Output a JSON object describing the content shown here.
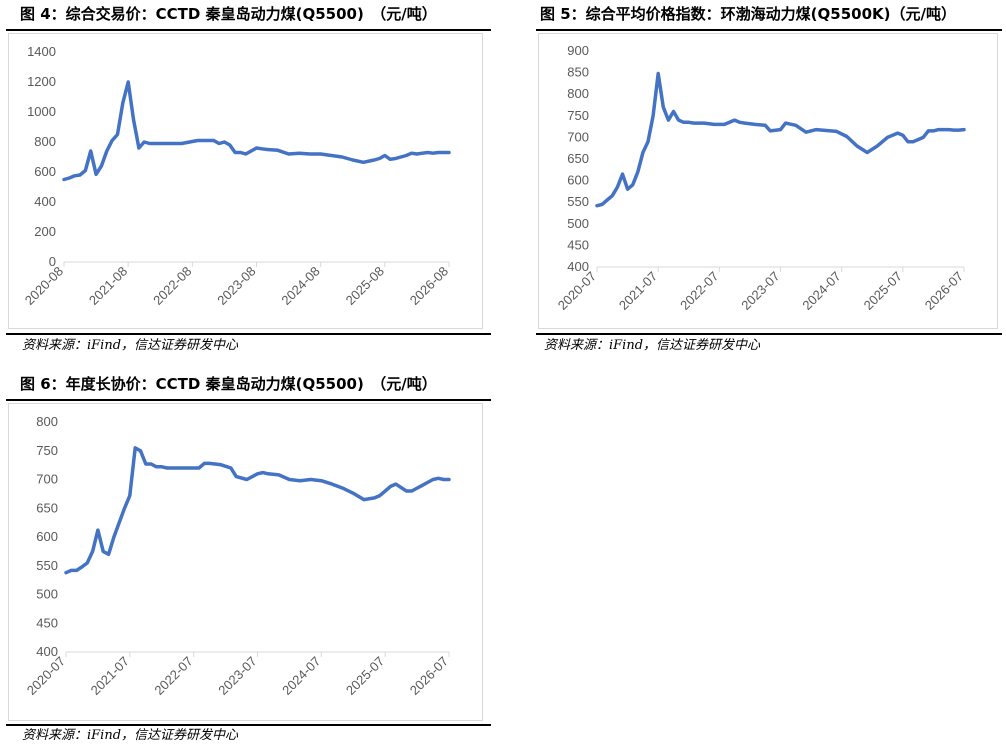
{
  "colors": {
    "line": "#4472C4",
    "axis_text": "#595959",
    "grid": "#d9d9d9",
    "rule": "#000000"
  },
  "chart_data": [
    {
      "id": "fig4",
      "type": "line",
      "title": "图 4：综合交易价：CCTD 秦皇岛动力煤(Q5500)　（元/吨）",
      "source": "资料来源：iFind，信达证券研发中心",
      "xlabel": "",
      "ylabel": "",
      "ylim": [
        0,
        1400
      ],
      "yticks": [
        0,
        200,
        400,
        600,
        800,
        1000,
        1200,
        1400
      ],
      "xlim": [
        "2020-08",
        "2026-08"
      ],
      "xticks": [
        "2020-08",
        "2021-08",
        "2022-08",
        "2023-08",
        "2024-08",
        "2025-08",
        "2026-08"
      ],
      "grid": false,
      "series": [
        {
          "x": [
            "2020-08",
            "2020-09",
            "2020-10",
            "2020-11",
            "2020-12",
            "2021-01",
            "2021-02",
            "2021-03",
            "2021-04",
            "2021-05",
            "2021-06",
            "2021-07",
            "2021-08",
            "2021-09",
            "2021-10",
            "2021-11",
            "2021-12",
            "2022-01",
            "2022-02",
            "2022-03",
            "2022-06",
            "2022-09",
            "2022-10",
            "2022-12",
            "2023-01",
            "2023-02",
            "2023-03",
            "2023-04",
            "2023-05",
            "2023-06",
            "2023-07",
            "2023-08",
            "2023-09",
            "2023-10",
            "2023-12",
            "2024-02",
            "2024-04",
            "2024-06",
            "2024-08",
            "2024-10",
            "2024-12",
            "2025-02",
            "2025-04",
            "2025-06",
            "2025-07",
            "2025-08",
            "2025-09",
            "2025-10",
            "2025-11",
            "2025-12",
            "2026-01",
            "2026-02",
            "2026-03",
            "2026-04",
            "2026-05",
            "2026-06",
            "2026-07",
            "2026-08"
          ],
          "y": [
            550,
            560,
            575,
            580,
            610,
            740,
            585,
            640,
            740,
            810,
            850,
            1060,
            1200,
            950,
            760,
            800,
            790,
            790,
            790,
            790,
            790,
            810,
            810,
            810,
            790,
            800,
            780,
            730,
            730,
            720,
            740,
            760,
            755,
            750,
            745,
            720,
            725,
            720,
            720,
            710,
            700,
            680,
            665,
            680,
            690,
            710,
            685,
            690,
            700,
            710,
            725,
            720,
            725,
            730,
            725,
            730,
            730,
            730
          ]
        }
      ]
    },
    {
      "id": "fig5",
      "type": "line",
      "title": "图 5：综合平均价格指数：环渤海动力煤(Q5500K)（元/吨）",
      "source": "资料来源：iFind，信达证券研发中心",
      "xlabel": "",
      "ylabel": "",
      "ylim": [
        400,
        900
      ],
      "yticks": [
        400,
        450,
        500,
        550,
        600,
        650,
        700,
        750,
        800,
        850,
        900
      ],
      "xlim": [
        "2020-07",
        "2026-07"
      ],
      "xticks": [
        "2020-07",
        "2021-07",
        "2022-07",
        "2023-07",
        "2024-07",
        "2025-07",
        "2026-07"
      ],
      "grid": false,
      "series": [
        {
          "x": [
            "2020-07",
            "2020-08",
            "2020-09",
            "2020-10",
            "2020-11",
            "2020-12",
            "2021-01",
            "2021-02",
            "2021-03",
            "2021-04",
            "2021-05",
            "2021-06",
            "2021-07",
            "2021-08",
            "2021-09",
            "2021-10",
            "2021-11",
            "2021-12",
            "2022-01",
            "2022-02",
            "2022-04",
            "2022-06",
            "2022-08",
            "2022-10",
            "2022-11",
            "2022-12",
            "2023-02",
            "2023-04",
            "2023-05",
            "2023-07",
            "2023-08",
            "2023-10",
            "2023-12",
            "2024-02",
            "2024-04",
            "2024-06",
            "2024-08",
            "2024-10",
            "2024-12",
            "2025-02",
            "2025-04",
            "2025-06",
            "2025-07",
            "2025-08",
            "2025-09",
            "2025-10",
            "2025-11",
            "2025-12",
            "2026-01",
            "2026-02",
            "2026-03",
            "2026-04",
            "2026-05",
            "2026-06",
            "2026-07"
          ],
          "y": [
            542,
            545,
            555,
            565,
            585,
            615,
            580,
            590,
            620,
            665,
            690,
            750,
            848,
            770,
            740,
            760,
            740,
            735,
            735,
            733,
            733,
            730,
            730,
            740,
            735,
            733,
            730,
            728,
            715,
            718,
            733,
            728,
            712,
            718,
            716,
            714,
            702,
            680,
            665,
            680,
            700,
            710,
            705,
            690,
            690,
            695,
            700,
            715,
            715,
            718,
            718,
            718,
            717,
            717,
            718
          ]
        }
      ]
    },
    {
      "id": "fig6",
      "type": "line",
      "title": "图 6：年度长协价：CCTD 秦皇岛动力煤(Q5500)　（元/吨）",
      "source": "资料来源：iFind，信达证券研发中心",
      "xlabel": "",
      "ylabel": "",
      "ylim": [
        400,
        800
      ],
      "yticks": [
        400,
        450,
        500,
        550,
        600,
        650,
        700,
        750,
        800
      ],
      "xlim": [
        "2020-07",
        "2026-07"
      ],
      "xticks": [
        "2020-07",
        "2021-07",
        "2022-07",
        "2023-07",
        "2024-07",
        "2025-07",
        "2026-07"
      ],
      "grid": false,
      "series": [
        {
          "x": [
            "2020-07",
            "2020-08",
            "2020-09",
            "2020-10",
            "2020-11",
            "2020-12",
            "2021-01",
            "2021-02",
            "2021-03",
            "2021-04",
            "2021-05",
            "2021-06",
            "2021-07",
            "2021-08",
            "2021-09",
            "2021-10",
            "2021-11",
            "2021-12",
            "2022-01",
            "2022-02",
            "2022-04",
            "2022-06",
            "2022-08",
            "2022-09",
            "2022-10",
            "2022-12",
            "2023-02",
            "2023-03",
            "2023-05",
            "2023-07",
            "2023-08",
            "2023-09",
            "2023-11",
            "2024-01",
            "2024-03",
            "2024-05",
            "2024-07",
            "2024-09",
            "2024-11",
            "2025-01",
            "2025-03",
            "2025-05",
            "2025-06",
            "2025-07",
            "2025-08",
            "2025-09",
            "2025-10",
            "2025-11",
            "2025-12",
            "2026-01",
            "2026-02",
            "2026-03",
            "2026-04",
            "2026-05",
            "2026-06",
            "2026-07"
          ],
          "y": [
            538,
            542,
            542,
            548,
            555,
            575,
            612,
            575,
            570,
            600,
            625,
            650,
            672,
            755,
            750,
            727,
            727,
            722,
            722,
            720,
            720,
            720,
            720,
            728,
            728,
            726,
            720,
            705,
            700,
            710,
            712,
            710,
            708,
            700,
            698,
            700,
            698,
            692,
            685,
            676,
            665,
            668,
            672,
            680,
            688,
            692,
            686,
            680,
            680,
            685,
            690,
            695,
            700,
            702,
            700,
            700
          ]
        }
      ]
    }
  ]
}
